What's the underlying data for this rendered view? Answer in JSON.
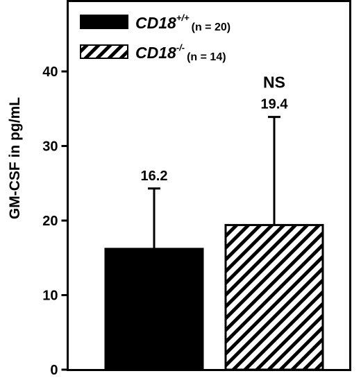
{
  "chart_data": {
    "type": "bar",
    "ylabel": "GM-CSF in pg/mL",
    "ylim": [
      0,
      50
    ],
    "yticks": [
      0,
      10,
      20,
      30,
      40
    ],
    "grid": false,
    "legend_position": "top-left",
    "series": [
      {
        "name": "CD18+/+ (n = 20)",
        "legend_label": {
          "base": "CD18",
          "sup": "+/+",
          "n": "(n = 20)"
        },
        "value": 16.2,
        "error": 8.1,
        "data_label": "16.2",
        "fill": "solid",
        "color": "#000000"
      },
      {
        "name": "CD18-/- (n = 14)",
        "legend_label": {
          "base": "CD18",
          "sup": "-/-",
          "n": "(n = 14)"
        },
        "value": 19.4,
        "error": 14.5,
        "data_label": "19.4",
        "annotation": "NS",
        "fill": "hatched",
        "color": "#000000"
      }
    ]
  }
}
